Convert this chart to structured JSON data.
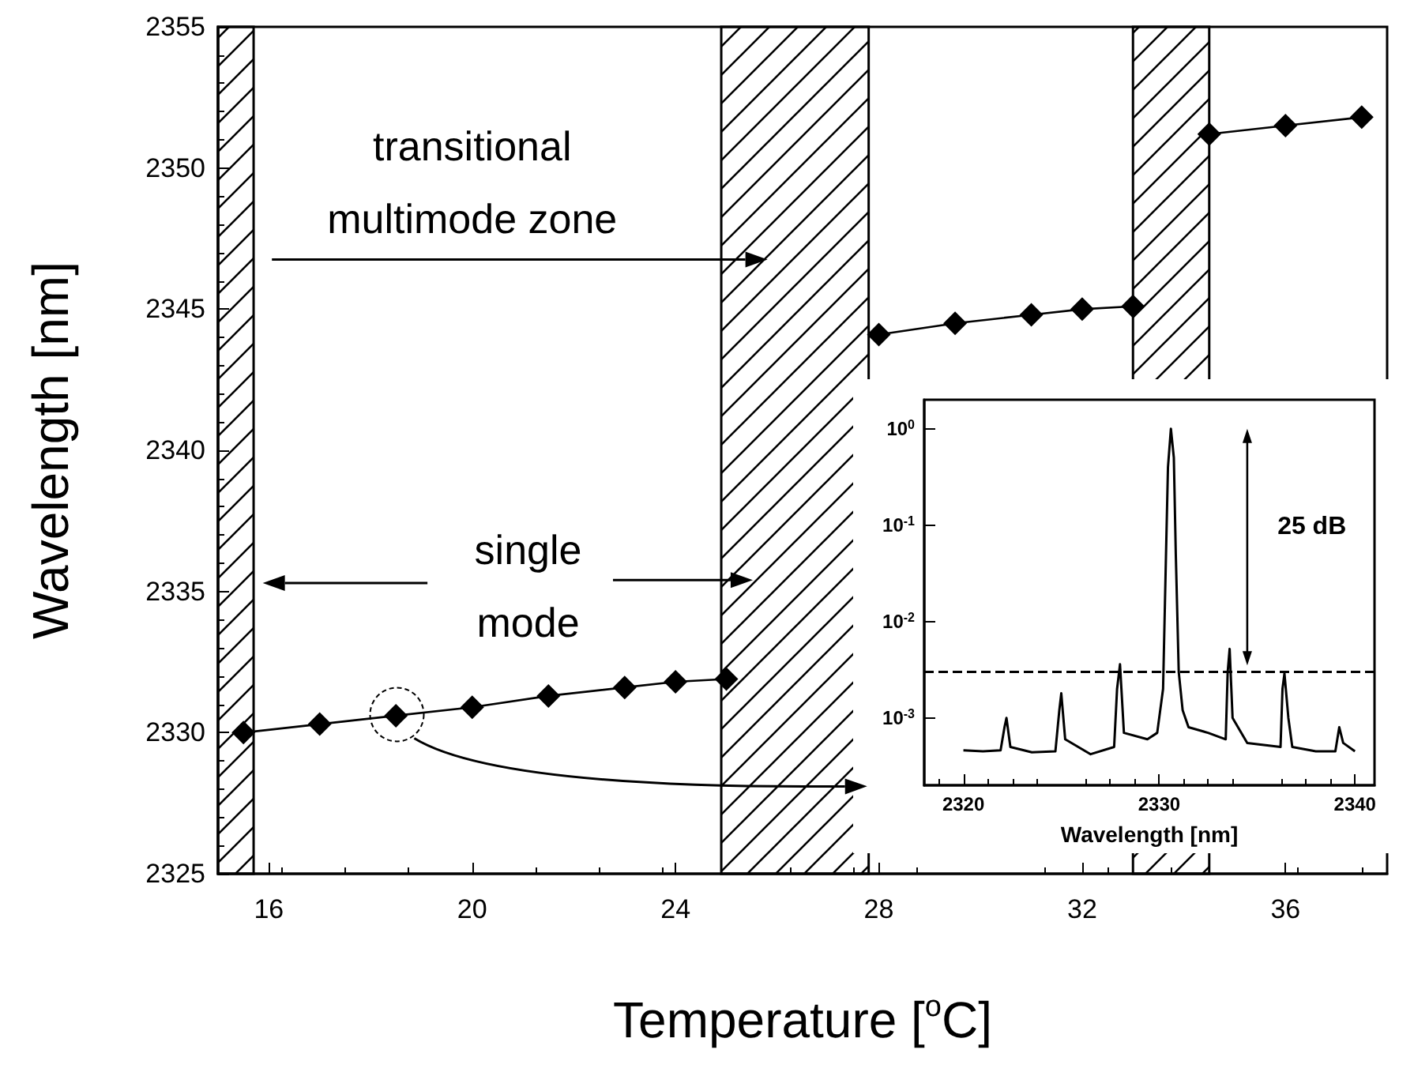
{
  "chart_data": [
    {
      "type": "line",
      "xlabel": "Temperature [$^{o}$C]",
      "ylabel": "Wavelength [nm]",
      "xlim": [
        15,
        38
      ],
      "ylim": [
        2325,
        2355
      ],
      "xticks": [
        16,
        20,
        24,
        28,
        32,
        36
      ],
      "yticks": [
        2325,
        2330,
        2335,
        2340,
        2345,
        2350,
        2355
      ],
      "marker": "diamond",
      "series": [
        {
          "color": "#000000",
          "x": [
            15.5,
            17,
            18.5,
            20,
            21.5,
            23,
            24,
            25
          ],
          "values": [
            2330.0,
            2330.3,
            2330.6,
            2330.9,
            2331.3,
            2331.6,
            2331.8,
            2331.9
          ]
        },
        {
          "color": "#000000",
          "x": [
            28,
            29.5,
            31,
            32,
            33
          ],
          "values": [
            2344.1,
            2344.5,
            2344.8,
            2345.0,
            2345.1
          ]
        },
        {
          "color": "#000000",
          "x": [
            34.5,
            36,
            37.5
          ],
          "values": [
            2351.2,
            2351.5,
            2351.8
          ]
        }
      ],
      "bands": [
        {
          "axis": "x",
          "from": 15,
          "to": 15.7,
          "color": "#000000"
        },
        {
          "axis": "x",
          "from": 24.9,
          "to": 27.8,
          "color": "#000000"
        },
        {
          "axis": "x",
          "from": 33,
          "to": 34.5,
          "color": "#000000"
        }
      ],
      "annotations": [
        "transitional\nmultimode zone",
        "single\nmode"
      ]
    },
    {
      "type": "line",
      "xlabel": "Wavelength [nm]",
      "xlim": [
        2318,
        2341
      ],
      "ylim": [
        0.0002,
        2
      ],
      "xticks": [
        2320,
        2330,
        2340
      ],
      "yticks": [
        {
          "value": 0.001,
          "label": "10$^{-3}$"
        },
        {
          "value": 0.01,
          "label": "10$^{-2}$"
        },
        {
          "value": 0.1,
          "label": "10$^{-1}$"
        },
        {
          "value": 1,
          "label": "10$^{0}$"
        }
      ],
      "log": "y",
      "marker": "none",
      "series": [
        {
          "color": "#000000",
          "x": [
            2320,
            2321,
            2321.9,
            2322.1,
            2322.2,
            2322.4,
            2323.5,
            2324.7,
            2324.9,
            2325.0,
            2325.2,
            2326.5,
            2327.7,
            2327.85,
            2328.0,
            2328.2,
            2329.4,
            2329.9,
            2330.2,
            2330.35,
            2330.45,
            2330.6,
            2330.75,
            2330.85,
            2331.0,
            2331.2,
            2331.5,
            2332.5,
            2333.4,
            2333.5,
            2333.6,
            2333.75,
            2334.5,
            2336.2,
            2336.3,
            2336.4,
            2336.6,
            2336.8,
            2338,
            2339,
            2339.2,
            2339.4,
            2340
          ],
          "values": [
            0.00046,
            0.00045,
            0.00046,
            0.0008,
            0.001,
            0.0005,
            0.00044,
            0.00045,
            0.0012,
            0.0018,
            0.0006,
            0.00042,
            0.0005,
            0.002,
            0.0036,
            0.0007,
            0.0006,
            0.0007,
            0.002,
            0.05,
            0.4,
            1.0,
            0.5,
            0.05,
            0.003,
            0.0012,
            0.0008,
            0.0007,
            0.0006,
            0.003,
            0.0052,
            0.001,
            0.00055,
            0.0005,
            0.002,
            0.0029,
            0.001,
            0.0005,
            0.00045,
            0.00045,
            0.0008,
            0.00055,
            0.00045
          ]
        }
      ],
      "ref_lines": [
        {
          "axis": "y",
          "value": 0.003,
          "line_style": "dashed",
          "color": "#000000"
        }
      ],
      "annotations": [
        "25 dB"
      ]
    }
  ]
}
